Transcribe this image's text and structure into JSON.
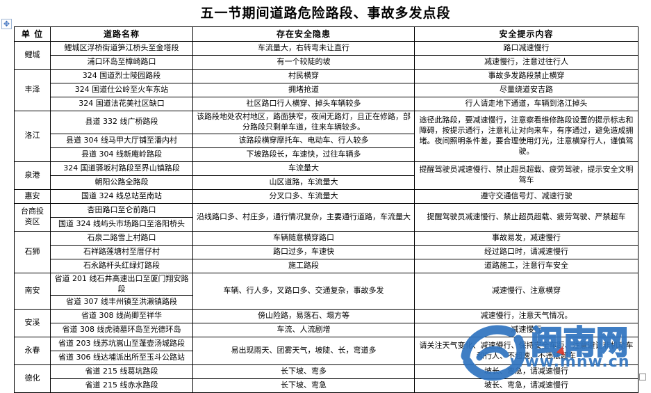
{
  "title": "五一节期间道路危险路段、事故多发点段",
  "icons": {
    "move_handle_glyph": "✥"
  },
  "table": {
    "headers": [
      "单 位",
      "道路名称",
      "存在安全隐患",
      "安全提示内容"
    ],
    "sections": [
      {
        "unit": "鲤城",
        "rows": [
          {
            "road": "鲤城区浮桥街道笋江桥头至金塔段",
            "hazard": "车流量大，右转弯未让直行",
            "tip": "路口减速慢行"
          },
          {
            "road": "浦口环岛至樟崎路口",
            "hazard": "有一个较陡的坡",
            "tip": "减速慢行，注意过往行人"
          }
        ]
      },
      {
        "unit": "丰泽",
        "rows": [
          {
            "road": "324 国道烈士陵园路段",
            "hazard": "村民横穿",
            "tip": "事故多发路段禁止横穿"
          },
          {
            "road": "324 国道仕公岭至火车东站",
            "hazard": "拥堵抢道",
            "tip": "尽量绕道安吉路"
          },
          {
            "road": "324 国道法花美社区缺口",
            "hazard": "社区路口行人横穿、掉头车辆较多",
            "tip": "行人请走地下通道，车辆到洛江掉头"
          }
        ]
      },
      {
        "unit": "洛江",
        "tip": "途径此路段，要减速慢行，注意察看维修路段设置的提示标志和障碍，按提示通行，注意礼让对向来车，有序通过，避免造成拥堵。夜间照明条件差，要合理使用灯光，注意横穿行人，谨慎驾驶。",
        "rows": [
          {
            "road": "县道 332 线广桥路段",
            "hazard": "该路段地处农村地区，路面狭窄，夜间无路灯，且正在修路，部分路段只剩单车道，往来车辆较多。"
          },
          {
            "road": "县道 304 线马甲大厅铺至潘内村",
            "hazard": "该路段横穿摩托车、电动车、行人较多"
          },
          {
            "road": "县道 304 线新庵岭路段",
            "hazard": "下坡路段长，车速快，过往车辆多"
          }
        ]
      },
      {
        "unit": "泉港",
        "tip": "提醒驾驶员减速慢行、禁止超员超载、疲劳驾驶，提示安全文明驾车",
        "rows": [
          {
            "road": "324 国道驿坂村路段至界山镇路段",
            "hazard": "车流量大"
          },
          {
            "road": "朝阳公路全路段",
            "hazard": "山区道路，车流量大"
          }
        ]
      },
      {
        "unit": "惠安",
        "rows": [
          {
            "road": "国道 324 线总站至南站",
            "hazard": "分叉口多、车流量大",
            "tip": "遵守交通信号灯、减速行驶"
          }
        ]
      },
      {
        "unit": "台商投资区",
        "hazard": "沿线路口多、村庄多，通行情况复杂，主要通行道路，车流量大",
        "tip": "提醒驾驶员减速慢行、禁止超员超载、疲劳驾驶、严禁超车",
        "rows": [
          {
            "road": "杏田路口至仑前路口"
          },
          {
            "road": "国道 324 线屿头市场路口至洛阳桥头"
          }
        ]
      },
      {
        "unit": "石狮",
        "rows": [
          {
            "road": "石泉二路雪上村路口",
            "hazard": "车辆随意横穿路口",
            "tip": "事故易发，减速慢行"
          },
          {
            "road": "石祥路莲塘村至厝仔村",
            "hazard": "路口过多，车速快",
            "tip": "经过路口时，请减速慢行"
          },
          {
            "road": "石永路杆头红绿灯路段",
            "hazard": "施工路段",
            "tip": "道路施工，注意行车安全"
          }
        ]
      },
      {
        "unit": "南安",
        "hazard": "车辆、行人多，叉路口多、交通复杂，事故多发",
        "tip": "减速慢行、注意横穿",
        "rows": [
          {
            "road": "省道 201 线石井高速出口至厦门翔安路段"
          },
          {
            "road": "省道 307 线丰州镇至洪濑镇路段"
          }
        ]
      },
      {
        "unit": "安溪",
        "rows": [
          {
            "road": "省道 308 线尚卿至祥华",
            "hazard": "傍山险路，易落石、塌方等",
            "tip": "减速慢行，注意天气情况。"
          },
          {
            "road": "省道 308 线虎骑墓环岛至光德环岛",
            "hazard": "车流、人流剧增",
            "tip": "减速慢行"
          }
        ]
      },
      {
        "unit": "永春",
        "hazard": "易出现雨天、团雾天气，坡陡、长，弯道多",
        "tip": "请关注天气变化、减速慢行、保持安全车距、注意避让非机动车和行人、不超速、不违法超车",
        "rows": [
          {
            "road": "省道 203 线苏坑嵩山至蓬壶汤城路段"
          },
          {
            "road": "省道 306 线达埔派出所至玉斗公路站"
          }
        ]
      },
      {
        "unit": "德化",
        "rows": [
          {
            "road": "省道 215 线葛坑路段",
            "hazard": "长下坡、弯多",
            "tip": "坡长、弯急，请减速慢行"
          },
          {
            "road": "省道 215 线赤水路段",
            "hazard": "长下坡、弯急",
            "tip": "坡长、弯急，请减速慢行"
          }
        ]
      }
    ]
  },
  "watermark": {
    "site_name": "闽南网",
    "site_url": "www.mnw.cn",
    "brand_blue": "#2f74c0",
    "accent_red": "#d9372c"
  }
}
